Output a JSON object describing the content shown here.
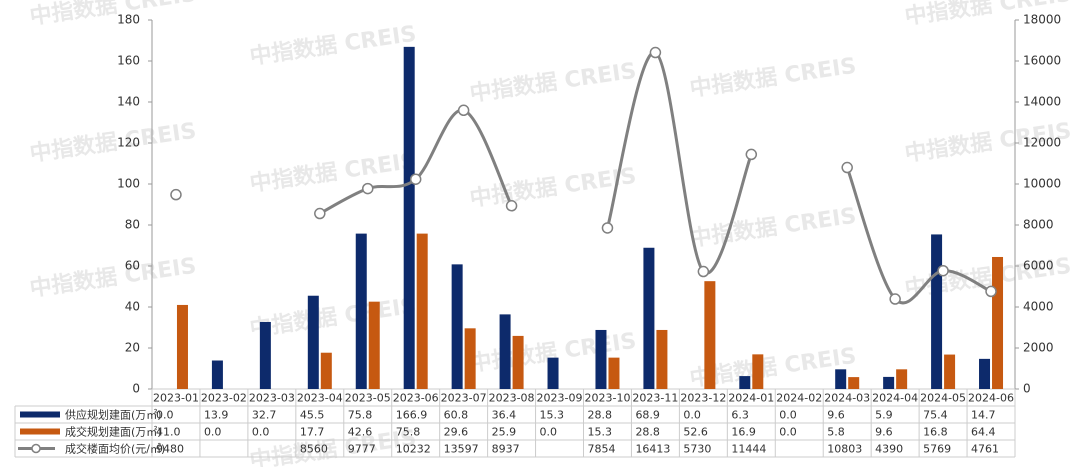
{
  "chart_data": {
    "type": "bar-line",
    "watermark": "中指数据 CREIS",
    "categories": [
      "2023-01",
      "2023-02",
      "2023-03",
      "2023-04",
      "2023-05",
      "2023-06",
      "2023-07",
      "2023-08",
      "2023-09",
      "2023-10",
      "2023-11",
      "2023-12",
      "2024-01",
      "2024-02",
      "2024-03",
      "2024-04",
      "2024-05",
      "2024-06"
    ],
    "series": [
      {
        "name": "供应规划建面(万㎡)",
        "color": "#0d2a6b",
        "type": "bar",
        "values": [
          0.0,
          13.9,
          32.7,
          45.5,
          75.8,
          166.9,
          60.8,
          36.4,
          15.3,
          28.8,
          68.9,
          0.0,
          6.3,
          0.0,
          9.6,
          5.9,
          75.4,
          14.7
        ],
        "value_labels": [
          "0.0",
          "13.9",
          "32.7",
          "45.5",
          "75.8",
          "166.9",
          "60.8",
          "36.4",
          "15.3",
          "28.8",
          "68.9",
          "0.0",
          "6.3",
          "0.0",
          "9.6",
          "5.9",
          "75.4",
          "14.7"
        ]
      },
      {
        "name": "成交规划建面(万㎡)",
        "color": "#c65911",
        "type": "bar",
        "values": [
          41.0,
          0.0,
          0.0,
          17.7,
          42.6,
          75.8,
          29.6,
          25.9,
          0.0,
          15.3,
          28.8,
          52.6,
          16.9,
          0.0,
          5.8,
          9.6,
          16.8,
          64.4
        ],
        "value_labels": [
          "41.0",
          "0.0",
          "0.0",
          "17.7",
          "42.6",
          "75.8",
          "29.6",
          "25.9",
          "0.0",
          "15.3",
          "28.8",
          "52.6",
          "16.9",
          "0.0",
          "5.8",
          "9.6",
          "16.8",
          "64.4"
        ]
      },
      {
        "name": "成交楼面均价(元/㎡)",
        "color": "#808080",
        "type": "line",
        "axis": "y2",
        "values": [
          9480,
          null,
          null,
          8560,
          9777,
          10232,
          13597,
          8937,
          null,
          7854,
          16413,
          5730,
          11444,
          null,
          10803,
          4390,
          5769,
          4761
        ]
      }
    ],
    "ylim": [
      0,
      180
    ],
    "yticks": [
      0,
      20,
      40,
      60,
      80,
      100,
      120,
      140,
      160,
      180
    ],
    "y2lim": [
      0,
      18000
    ],
    "y2ticks": [
      0,
      2000,
      4000,
      6000,
      8000,
      10000,
      12000,
      14000,
      16000,
      18000
    ],
    "grid": false
  }
}
